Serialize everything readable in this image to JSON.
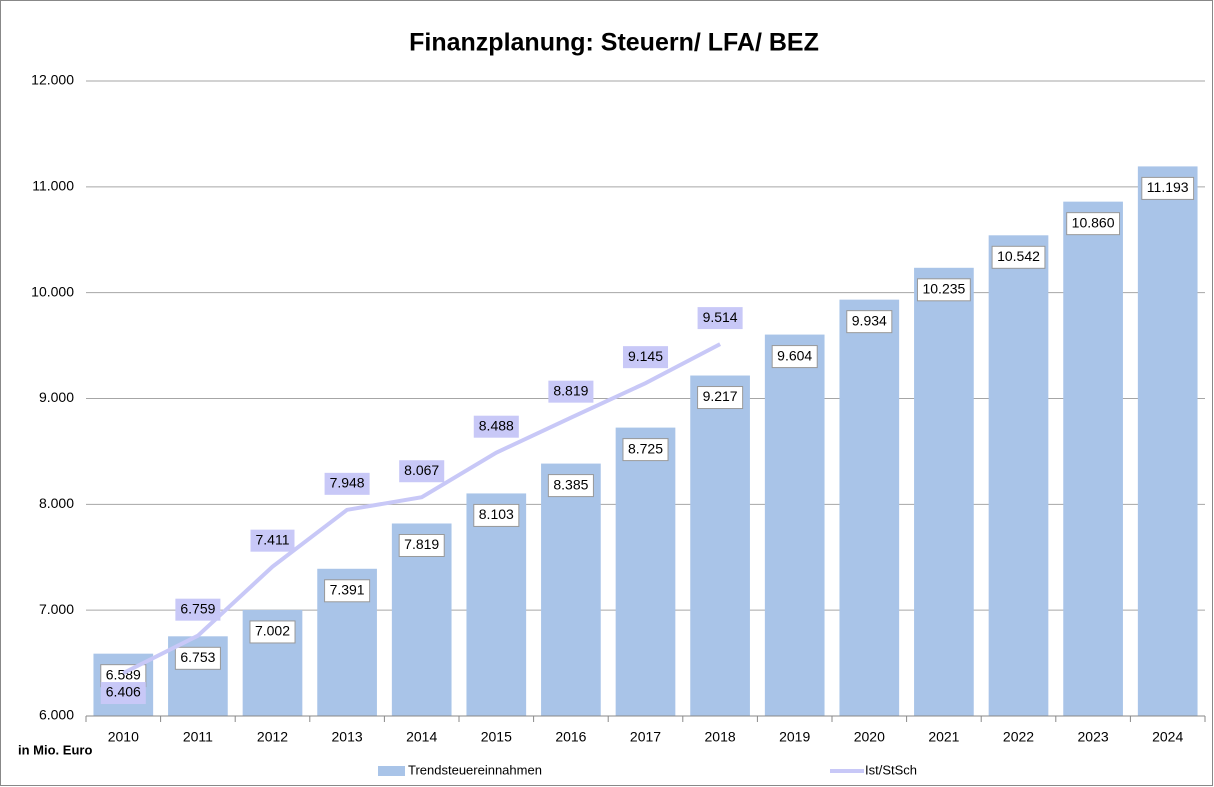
{
  "chart_data": {
    "type": "bar",
    "title": "Finanzplanung: Steuern/ LFA/ BEZ",
    "y_axis_label": "in Mio. Euro",
    "categories": [
      "2010",
      "2011",
      "2012",
      "2013",
      "2014",
      "2015",
      "2016",
      "2017",
      "2018",
      "2019",
      "2020",
      "2021",
      "2022",
      "2023",
      "2024"
    ],
    "series": [
      {
        "name": "Trendsteuereinnahmen",
        "type": "bar",
        "color": "#a9c4e8",
        "values": [
          6589,
          6753,
          7002,
          7391,
          7819,
          8103,
          8385,
          8725,
          9217,
          9604,
          9934,
          10235,
          10542,
          10860,
          11193
        ],
        "value_labels": [
          "6.589",
          "6.753",
          "7.002",
          "7.391",
          "7.819",
          "8.103",
          "8.385",
          "8.725",
          "9.217",
          "9.604",
          "9.934",
          "10.235",
          "10.542",
          "10.860",
          "11.193"
        ]
      },
      {
        "name": "Ist/StSch",
        "type": "line",
        "color": "#c8c8f7",
        "values": [
          6406,
          6759,
          7411,
          7948,
          8067,
          8488,
          8819,
          9145,
          9514,
          null,
          null,
          null,
          null,
          null,
          null
        ],
        "value_labels": [
          "6.406",
          "6.759",
          "7.411",
          "7.948",
          "8.067",
          "8.488",
          "8.819",
          "9.145",
          "9.514",
          null,
          null,
          null,
          null,
          null,
          null
        ]
      }
    ],
    "ylim": [
      6000,
      12000
    ],
    "yticks": [
      {
        "value": 6000,
        "label": "6.000"
      },
      {
        "value": 7000,
        "label": "7.000"
      },
      {
        "value": 8000,
        "label": "8.000"
      },
      {
        "value": 9000,
        "label": "9.000"
      },
      {
        "value": 10000,
        "label": "10.000"
      },
      {
        "value": 11000,
        "label": "11.000"
      },
      {
        "value": 12000,
        "label": "12.000"
      }
    ],
    "grid": true,
    "legend": "bottom"
  }
}
